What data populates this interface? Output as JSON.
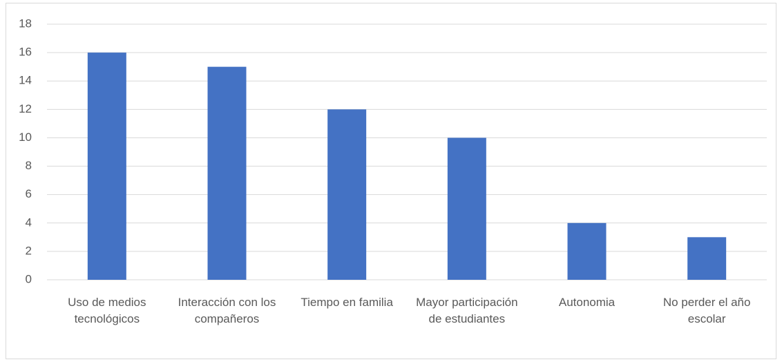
{
  "chart_data": {
    "type": "bar",
    "categories": [
      "Uso de medios tecnológicos",
      "Interacción con los compañeros",
      "Tiempo en familia",
      "Mayor participación de estudiantes",
      "Autonomia",
      "No perder el año escolar"
    ],
    "values": [
      16,
      15,
      12,
      10,
      4,
      3
    ],
    "color": "#4472c4",
    "ylim": [
      0,
      18
    ],
    "yticks": [
      0,
      2,
      4,
      6,
      8,
      10,
      12,
      14,
      16,
      18
    ],
    "grid": true
  }
}
